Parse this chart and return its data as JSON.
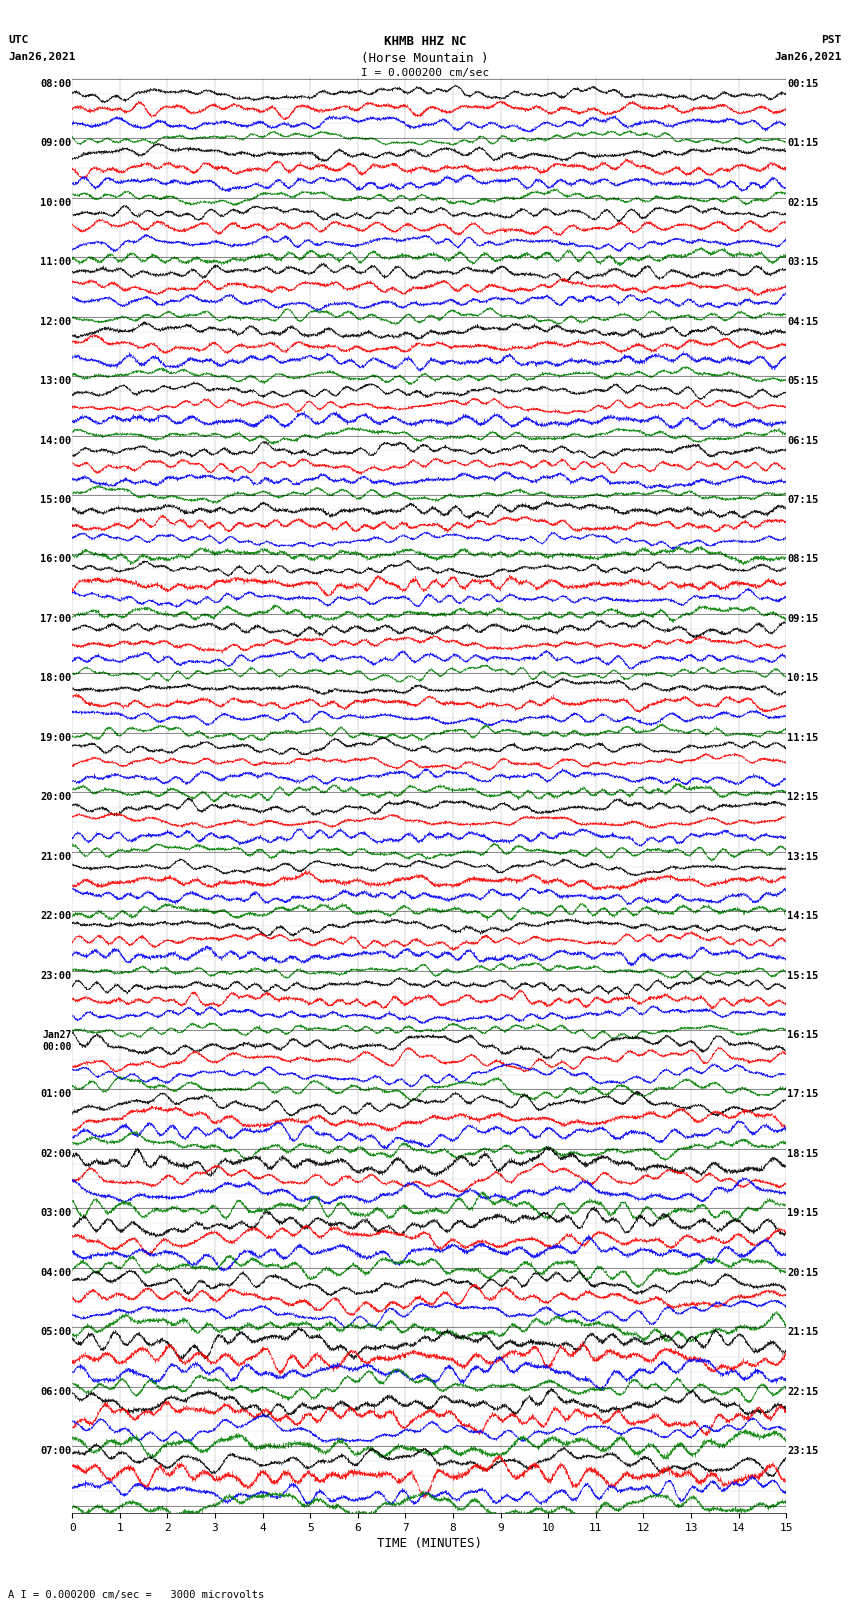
{
  "title_line1": "KHMB HHZ NC",
  "title_line2": "(Horse Mountain )",
  "scale_label": "I = 0.000200 cm/sec",
  "bottom_label": "A I = 0.000200 cm/sec =   3000 microvolts",
  "xlabel": "TIME (MINUTES)",
  "left_header_line1": "UTC",
  "left_header_line2": "Jan26,2021",
  "right_header_line1": "PST",
  "right_header_line2": "Jan26,2021",
  "num_hours": 24,
  "traces_per_hour": 4,
  "minutes_per_row": 15,
  "x_ticks": [
    0,
    1,
    2,
    3,
    4,
    5,
    6,
    7,
    8,
    9,
    10,
    11,
    12,
    13,
    14,
    15
  ],
  "colors": [
    "black",
    "red",
    "blue",
    "green"
  ],
  "bg_color": "white",
  "fig_width": 8.5,
  "fig_height": 16.13,
  "left_labels_utc": [
    "08:00",
    "09:00",
    "10:00",
    "11:00",
    "12:00",
    "13:00",
    "14:00",
    "15:00",
    "16:00",
    "17:00",
    "18:00",
    "19:00",
    "20:00",
    "21:00",
    "22:00",
    "23:00",
    "Jan27\n00:00",
    "01:00",
    "02:00",
    "03:00",
    "04:00",
    "05:00",
    "06:00",
    "07:00"
  ],
  "right_labels_pst": [
    "00:15",
    "01:15",
    "02:15",
    "03:15",
    "04:15",
    "05:15",
    "06:15",
    "07:15",
    "08:15",
    "09:15",
    "10:15",
    "11:15",
    "12:15",
    "13:15",
    "14:15",
    "15:15",
    "16:15",
    "17:15",
    "18:15",
    "19:15",
    "20:15",
    "21:15",
    "22:15",
    "23:15"
  ]
}
